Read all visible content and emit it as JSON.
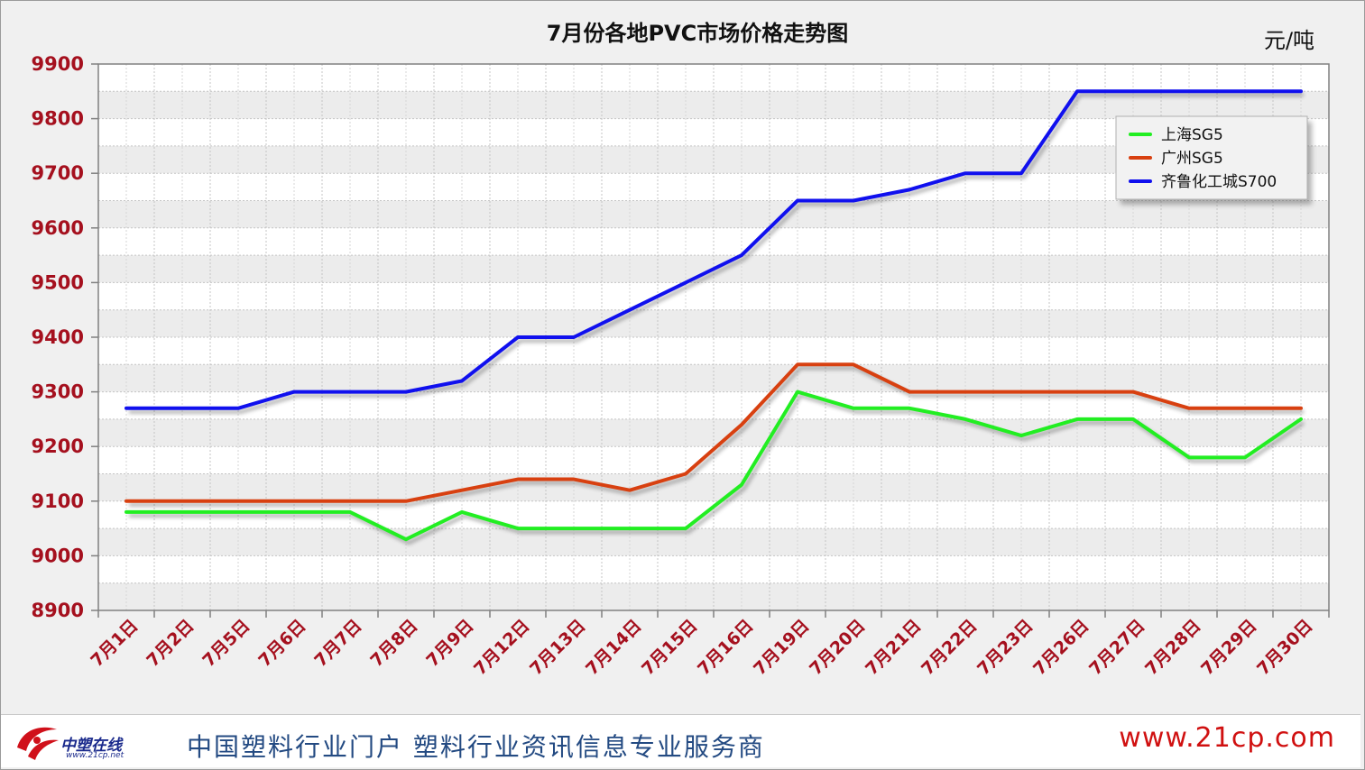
{
  "chart_data": {
    "type": "line",
    "title": "7月份各地PVC市场价格走势图",
    "unit": "元/吨",
    "categories": [
      "7月1日",
      "7月2日",
      "7月5日",
      "7月6日",
      "7月7日",
      "7月8日",
      "7月9日",
      "7月12日",
      "7月13日",
      "7月14日",
      "7月15日",
      "7月16日",
      "7月19日",
      "7月20日",
      "7月21日",
      "7月22日",
      "7月23日",
      "7月26日",
      "7月27日",
      "7月28日",
      "7月29日",
      "7月30日"
    ],
    "ylim": [
      8900,
      9900
    ],
    "yticks": [
      9900,
      9800,
      9700,
      9600,
      9500,
      9400,
      9300,
      9200,
      9100,
      9000,
      8900
    ],
    "grid": true,
    "legend_position": "top-right",
    "series": [
      {
        "name": "上海SG5",
        "color": "#22ee22",
        "values": [
          9080,
          9080,
          9080,
          9080,
          9080,
          9030,
          9080,
          9050,
          9050,
          9050,
          9050,
          9130,
          9300,
          9270,
          9270,
          9250,
          9220,
          9250,
          9250,
          9180,
          9180,
          9250
        ]
      },
      {
        "name": "广州SG5",
        "color": "#d84010",
        "values": [
          9100,
          9100,
          9100,
          9100,
          9100,
          9100,
          9120,
          9140,
          9140,
          9120,
          9150,
          9240,
          9350,
          9350,
          9300,
          9300,
          9300,
          9300,
          9300,
          9270,
          9270,
          9270
        ]
      },
      {
        "name": "齐鲁化工城S700",
        "color": "#1010ee",
        "values": [
          9270,
          9270,
          9270,
          9300,
          9300,
          9300,
          9320,
          9400,
          9400,
          9450,
          9500,
          9550,
          9650,
          9650,
          9670,
          9700,
          9700,
          9850,
          9850,
          9850,
          9850,
          9850
        ]
      }
    ]
  },
  "footer": {
    "logo_text": "中塑在线",
    "logo_sub": "www.21cp.net",
    "slogan": "中国塑料行业门户  塑料行业资讯信息专业服务商",
    "url": "www.21cp.com"
  }
}
